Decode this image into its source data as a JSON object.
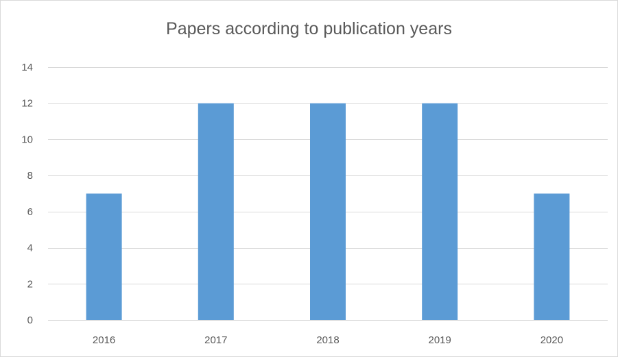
{
  "chart_data": {
    "type": "bar",
    "title": "Papers according to publication years",
    "categories": [
      "2016",
      "2017",
      "2018",
      "2019",
      "2020"
    ],
    "values": [
      7,
      12,
      12,
      12,
      7
    ],
    "xlabel": "",
    "ylabel": "",
    "ylim": [
      0,
      14
    ],
    "y_ticks": [
      0,
      2,
      4,
      6,
      8,
      10,
      12,
      14
    ],
    "grid": true,
    "legend": "none",
    "bar_color": "#5b9bd5",
    "gridline_color": "#d9d9d9"
  }
}
